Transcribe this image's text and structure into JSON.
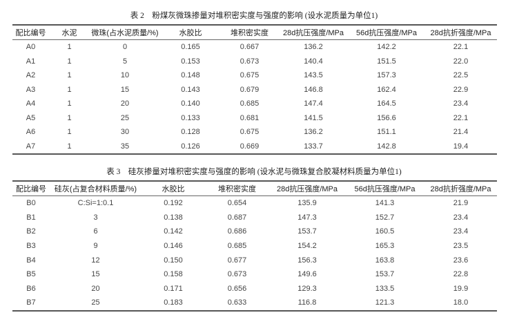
{
  "table2": {
    "title": "表 2　粉煤灰微珠掺量对堆积密实度与强度的影响 (设水泥质量为单位1)",
    "headers": [
      "配比编号",
      "水泥",
      "微珠(占水泥质量/%)",
      "水胶比",
      "堆积密实度",
      "28d抗压强度/MPa",
      "56d抗压强度/MPa",
      "28d抗折强度/MPa"
    ],
    "rows": [
      [
        "A0",
        "1",
        "0",
        "0.165",
        "0.667",
        "136.2",
        "142.2",
        "22.1"
      ],
      [
        "A1",
        "1",
        "5",
        "0.153",
        "0.673",
        "140.4",
        "151.5",
        "22.0"
      ],
      [
        "A2",
        "1",
        "10",
        "0.148",
        "0.675",
        "143.5",
        "157.3",
        "22.5"
      ],
      [
        "A3",
        "1",
        "15",
        "0.143",
        "0.679",
        "146.8",
        "162.4",
        "22.9"
      ],
      [
        "A4",
        "1",
        "20",
        "0.140",
        "0.685",
        "147.4",
        "164.5",
        "23.4"
      ],
      [
        "A5",
        "1",
        "25",
        "0.133",
        "0.681",
        "141.5",
        "156.6",
        "22.1"
      ],
      [
        "A6",
        "1",
        "30",
        "0.128",
        "0.675",
        "136.2",
        "151.1",
        "21.4"
      ],
      [
        "A7",
        "1",
        "35",
        "0.126",
        "0.669",
        "133.7",
        "142.8",
        "19.4"
      ]
    ]
  },
  "table3": {
    "title": "表 3　硅灰掺量对堆积密实度与强度的影响 (设水泥与微珠复合胶凝材料质量为单位1)",
    "headers": [
      "配比编号",
      "硅灰(占复合材料质量/%)",
      "水胶比",
      "堆积密实度",
      "28d抗压强度/MPa",
      "56d抗压强度/MPa",
      "28d抗折强度/MPa"
    ],
    "rows": [
      [
        "B0",
        "C:Si=1:0.1",
        "0.192",
        "0.654",
        "135.9",
        "141.3",
        "21.9"
      ],
      [
        "B1",
        "3",
        "0.138",
        "0.687",
        "147.3",
        "152.7",
        "23.4"
      ],
      [
        "B2",
        "6",
        "0.142",
        "0.686",
        "153.7",
        "160.5",
        "23.4"
      ],
      [
        "B3",
        "9",
        "0.146",
        "0.685",
        "154.2",
        "165.3",
        "23.5"
      ],
      [
        "B4",
        "12",
        "0.150",
        "0.677",
        "156.3",
        "163.8",
        "23.6"
      ],
      [
        "B5",
        "15",
        "0.158",
        "0.673",
        "149.6",
        "153.7",
        "22.8"
      ],
      [
        "B6",
        "20",
        "0.171",
        "0.656",
        "129.3",
        "133.5",
        "19.9"
      ],
      [
        "B7",
        "25",
        "0.183",
        "0.633",
        "116.8",
        "121.3",
        "18.0"
      ]
    ]
  }
}
